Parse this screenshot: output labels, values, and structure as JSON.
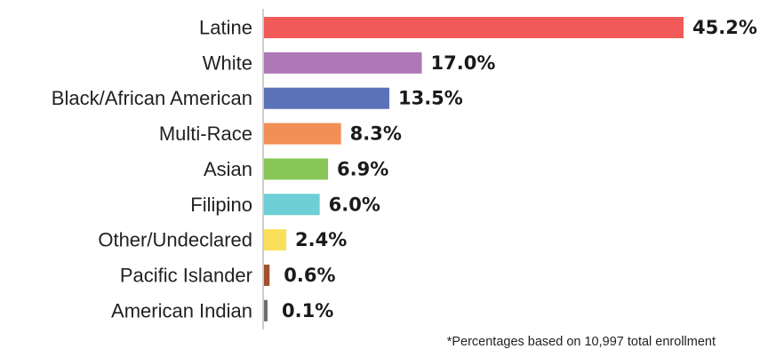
{
  "chart_data": {
    "type": "bar",
    "orientation": "horizontal",
    "categories": [
      "Latine",
      "White",
      "Black/African American",
      "Multi-Race",
      "Asian",
      "Filipino",
      "Other/Undeclared",
      "Pacific Islander",
      "American Indian"
    ],
    "values": [
      45.2,
      17.0,
      13.5,
      8.3,
      6.9,
      6.0,
      2.4,
      0.6,
      0.1
    ],
    "value_labels": [
      "45.2%",
      "17.0%",
      "13.5%",
      "8.3%",
      "6.9%",
      "6.0%",
      "2.4%",
      "0.6%",
      "0.1%"
    ],
    "colors": [
      "#f25a5a",
      "#ad78b5",
      "#5a72b8",
      "#f28f55",
      "#88c757",
      "#6ecfd6",
      "#fae05a",
      "#a0522d",
      "#6e6e6e"
    ],
    "xlim": [
      0,
      45.2
    ],
    "grid": false,
    "legend": "none",
    "title": "",
    "xlabel": "",
    "ylabel": ""
  },
  "footnote": "*Percentages based on 10,997 total enrollment"
}
